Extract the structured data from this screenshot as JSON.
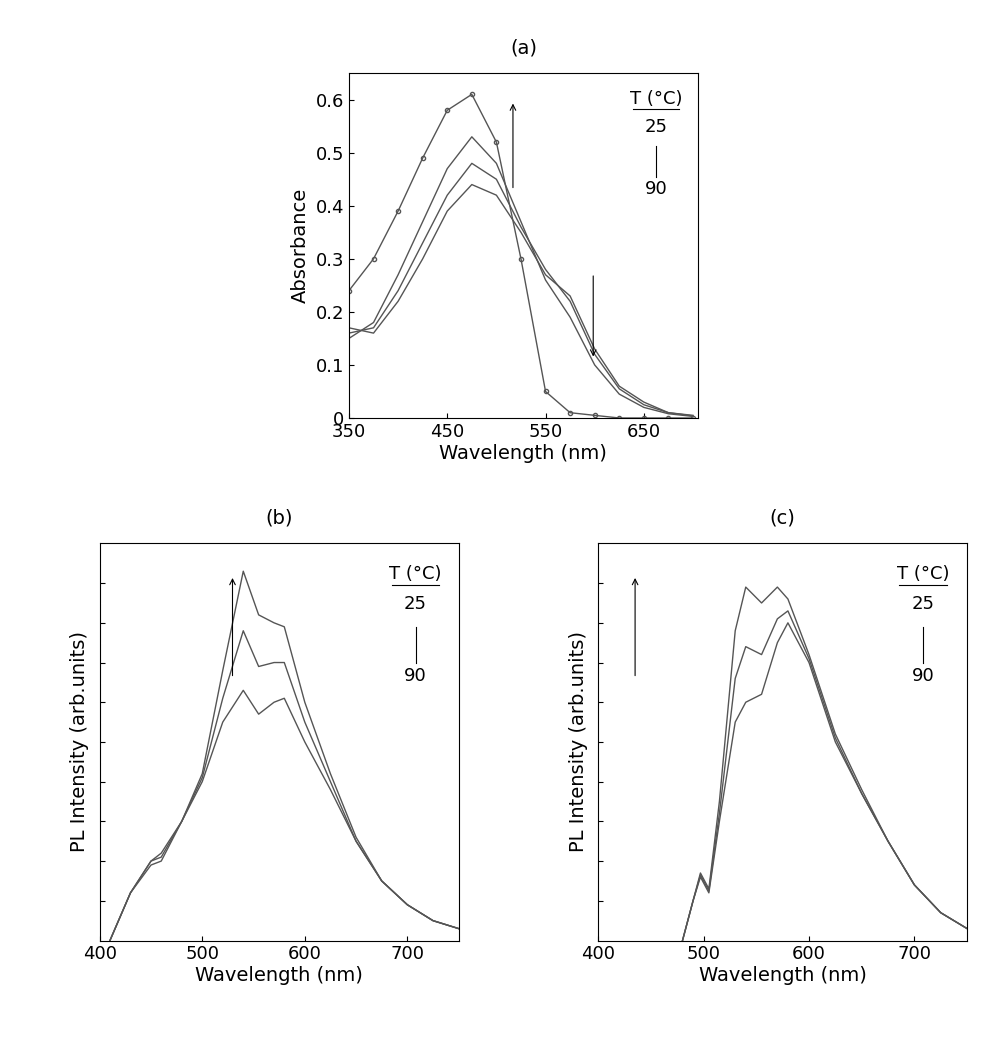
{
  "chart_data": [
    {
      "type": "line",
      "title": "(a)",
      "xlabel": "Wavelength (nm)",
      "ylabel": "Absorbance",
      "xlim": [
        350,
        705
      ],
      "xticks": [
        350,
        450,
        550,
        650
      ],
      "ylim": [
        0,
        0.65
      ],
      "yticks": [
        0,
        0.1,
        0.2,
        0.3,
        0.4,
        0.5,
        0.6
      ],
      "annotations": [
        "T (°C)",
        "25",
        "90"
      ],
      "x": [
        350,
        375,
        400,
        425,
        450,
        475,
        500,
        525,
        550,
        575,
        600,
        625,
        650,
        675,
        700
      ],
      "series": [
        {
          "color": "#555555",
          "line_style": "solid",
          "values": [
            0.17,
            0.16,
            0.22,
            0.3,
            0.39,
            0.44,
            0.42,
            0.35,
            0.27,
            0.23,
            0.13,
            0.06,
            0.03,
            0.01,
            0.005
          ]
        },
        {
          "color": "#555555",
          "line_style": "solid",
          "values": [
            0.16,
            0.17,
            0.24,
            0.33,
            0.42,
            0.48,
            0.45,
            0.36,
            0.28,
            0.22,
            0.12,
            0.055,
            0.025,
            0.01,
            0.004
          ]
        },
        {
          "color": "#555555",
          "line_style": "solid",
          "values": [
            0.15,
            0.18,
            0.27,
            0.37,
            0.47,
            0.53,
            0.48,
            0.37,
            0.26,
            0.19,
            0.1,
            0.045,
            0.02,
            0.008,
            0.003
          ]
        },
        {
          "color": "#555555",
          "line_style": "solid",
          "marker": "circle",
          "values": [
            0.24,
            0.3,
            0.39,
            0.49,
            0.58,
            0.61,
            0.52,
            0.3,
            0.05,
            0.01,
            0.005,
            0,
            0,
            0,
            0
          ]
        }
      ]
    },
    {
      "type": "line",
      "title": "(b)",
      "xlabel": "Wavelength (nm)",
      "ylabel": "PL Intensity (arb.units)",
      "xlim": [
        400,
        750
      ],
      "xticks": [
        400,
        500,
        600,
        700
      ],
      "ylim": [
        0,
        1
      ],
      "yticks": [
        0.1,
        0.2,
        0.3,
        0.4,
        0.5,
        0.6,
        0.7,
        0.8,
        0.9
      ],
      "tick_labels": "x",
      "annotations": [
        "T (°C)",
        "25",
        "90"
      ],
      "x": [
        410,
        430,
        450,
        460,
        480,
        500,
        520,
        540,
        555,
        570,
        580,
        600,
        625,
        650,
        675,
        700,
        725,
        750
      ],
      "series": [
        {
          "color": "#555555",
          "line_style": "solid",
          "values": [
            0,
            0.12,
            0.2,
            0.22,
            0.3,
            0.4,
            0.55,
            0.63,
            0.57,
            0.6,
            0.61,
            0.5,
            0.38,
            0.25,
            0.15,
            0.09,
            0.05,
            0.03
          ]
        },
        {
          "color": "#555555",
          "line_style": "solid",
          "values": [
            0,
            0.12,
            0.2,
            0.21,
            0.3,
            0.41,
            0.61,
            0.78,
            0.69,
            0.7,
            0.7,
            0.55,
            0.4,
            0.25,
            0.15,
            0.09,
            0.05,
            0.03
          ]
        },
        {
          "color": "#555555",
          "line_style": "solid",
          "values": [
            0,
            0.12,
            0.19,
            0.2,
            0.3,
            0.42,
            0.68,
            0.93,
            0.82,
            0.8,
            0.79,
            0.6,
            0.42,
            0.26,
            0.15,
            0.09,
            0.05,
            0.03
          ]
        }
      ]
    },
    {
      "type": "line",
      "title": "(c)",
      "xlabel": "Wavelength (nm)",
      "ylabel": "PL Intensity (arb.units)",
      "xlim": [
        400,
        750
      ],
      "xticks": [
        400,
        500,
        600,
        700
      ],
      "ylim": [
        0,
        1
      ],
      "yticks": [
        0.1,
        0.2,
        0.3,
        0.4,
        0.5,
        0.6,
        0.7,
        0.8,
        0.9
      ],
      "tick_labels": "x",
      "annotations": [
        "T (°C)",
        "25",
        "90"
      ],
      "x": [
        480,
        490,
        497,
        505,
        515,
        530,
        540,
        555,
        570,
        580,
        600,
        625,
        650,
        675,
        700,
        725,
        750
      ],
      "series": [
        {
          "color": "#555555",
          "line_style": "solid",
          "values": [
            0,
            0.1,
            0.16,
            0.12,
            0.3,
            0.55,
            0.6,
            0.62,
            0.75,
            0.8,
            0.7,
            0.5,
            0.37,
            0.25,
            0.14,
            0.07,
            0.03
          ]
        },
        {
          "color": "#555555",
          "line_style": "solid",
          "values": [
            0,
            0.1,
            0.165,
            0.125,
            0.32,
            0.66,
            0.74,
            0.72,
            0.81,
            0.83,
            0.71,
            0.51,
            0.37,
            0.25,
            0.14,
            0.07,
            0.03
          ]
        },
        {
          "color": "#555555",
          "line_style": "solid",
          "values": [
            0,
            0.1,
            0.17,
            0.13,
            0.35,
            0.78,
            0.89,
            0.85,
            0.89,
            0.86,
            0.72,
            0.52,
            0.38,
            0.25,
            0.14,
            0.07,
            0.03
          ]
        }
      ]
    }
  ]
}
